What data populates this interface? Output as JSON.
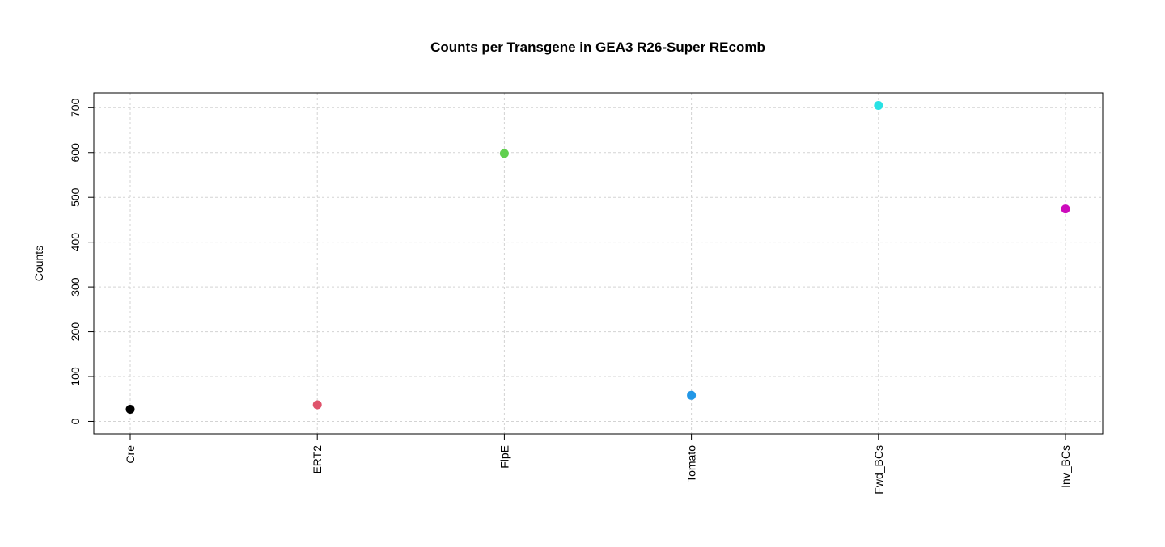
{
  "chart_data": {
    "type": "scatter",
    "title": "Counts per Transgene in GEA3 R26-Super REcomb",
    "xlabel": "",
    "ylabel": "Counts",
    "ylim": [
      -28,
      733
    ],
    "y_ticks": [
      "0",
      "100",
      "200",
      "300",
      "400",
      "500",
      "600",
      "700"
    ],
    "grid": true,
    "legend": "none",
    "categories": [
      "Cre",
      "ERT2",
      "FlpE",
      "Tomato",
      "Fwd_BCs",
      "Inv_BCs"
    ],
    "values": [
      27,
      37,
      598,
      58,
      705,
      474
    ],
    "point_colors": [
      "#000000",
      "#DF536B",
      "#61D04F",
      "#2297E6",
      "#28E2E5",
      "#CD0BBC"
    ]
  }
}
